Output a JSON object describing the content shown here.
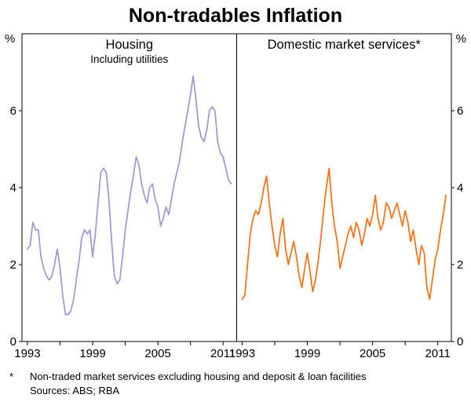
{
  "title": "Non-tradables Inflation",
  "footnote": {
    "marker": "*",
    "text": "Non-traded market services excluding housing and deposit & loan facilities",
    "sources": "Sources: ABS; RBA"
  },
  "chart_data": [
    {
      "type": "line",
      "panel": "left",
      "label": "Housing",
      "sublabel": "Including utilities",
      "y_unit": "%",
      "color": "#9e9ece",
      "xlim": [
        1992.5,
        2012.25
      ],
      "ylim": [
        0,
        8
      ],
      "yticks": [
        0,
        2,
        4,
        6
      ],
      "xticks": [
        1993,
        1996,
        1999,
        2002,
        2005,
        2008,
        2011
      ],
      "xtick_labels": [
        1993,
        1999,
        2005,
        2011
      ],
      "x_start": 1993.0,
      "x_step": 0.25,
      "values": [
        2.4,
        2.5,
        3.1,
        2.9,
        2.9,
        2.2,
        1.9,
        1.7,
        1.6,
        1.7,
        2.0,
        2.4,
        1.9,
        1.2,
        0.7,
        0.7,
        0.8,
        1.1,
        1.6,
        2.1,
        2.7,
        2.9,
        2.8,
        2.9,
        2.2,
        2.8,
        3.6,
        4.4,
        4.5,
        4.4,
        3.7,
        2.6,
        1.7,
        1.5,
        1.6,
        2.2,
        2.9,
        3.4,
        3.9,
        4.3,
        4.8,
        4.6,
        4.1,
        3.8,
        3.6,
        4.0,
        4.1,
        3.7,
        3.5,
        3.0,
        3.2,
        3.5,
        3.3,
        3.7,
        4.1,
        4.4,
        4.7,
        5.2,
        5.6,
        6.0,
        6.4,
        6.9,
        6.3,
        5.6,
        5.3,
        5.2,
        5.5,
        6.0,
        6.1,
        6.0,
        5.2,
        4.9,
        4.8,
        4.5,
        4.2,
        4.1
      ]
    },
    {
      "type": "line",
      "panel": "right",
      "label": "Domestic market services*",
      "sublabel": "",
      "y_unit": "%",
      "color": "#f4751c",
      "xlim": [
        1992.5,
        2012.25
      ],
      "ylim": [
        0,
        8
      ],
      "yticks": [
        0,
        2,
        4,
        6
      ],
      "xticks": [
        1993,
        1996,
        1999,
        2002,
        2005,
        2008,
        2011
      ],
      "xtick_labels": [
        1993,
        1999,
        2005,
        2011
      ],
      "x_start": 1993.0,
      "x_step": 0.25,
      "values": [
        1.1,
        1.2,
        2.0,
        2.8,
        3.2,
        3.4,
        3.3,
        3.6,
        4.0,
        4.3,
        3.6,
        3.0,
        2.5,
        2.2,
        2.8,
        3.2,
        2.4,
        2.0,
        2.3,
        2.6,
        2.2,
        1.7,
        1.4,
        1.9,
        2.3,
        1.8,
        1.3,
        1.6,
        2.1,
        2.7,
        3.4,
        4.0,
        4.5,
        3.6,
        3.0,
        2.6,
        1.9,
        2.2,
        2.5,
        2.8,
        3.0,
        2.7,
        3.1,
        2.9,
        2.5,
        2.8,
        3.2,
        3.0,
        3.3,
        3.8,
        3.2,
        2.9,
        3.1,
        3.6,
        3.5,
        3.2,
        3.4,
        3.6,
        3.3,
        3.0,
        3.4,
        3.1,
        2.6,
        2.9,
        2.4,
        2.0,
        2.5,
        2.3,
        1.4,
        1.1,
        1.6,
        2.1,
        2.4,
        2.9,
        3.3,
        3.8
      ]
    }
  ]
}
